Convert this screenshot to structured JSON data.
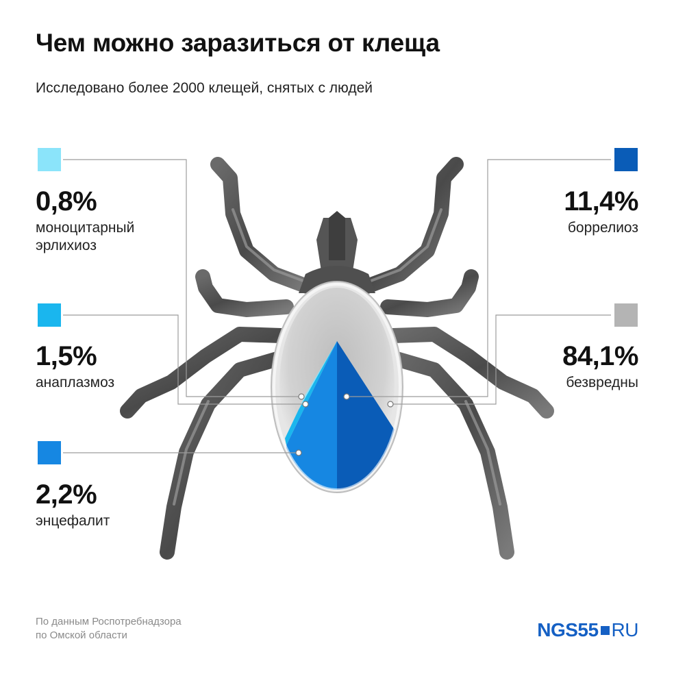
{
  "title": "Чем можно заразиться от клеща",
  "subtitle": "Исследовано более 2000 клещей, снятых с людей",
  "chart_data": {
    "type": "pie",
    "title": "Чем можно заразиться от клеща",
    "subtitle": "Исследовано более 2000 клещей, снятых с людей",
    "unit": "%",
    "slices": [
      {
        "pct_label": "0,8%",
        "value": 0.8,
        "name_lines": [
          "моноцитарный",
          "эрлихиоз"
        ],
        "color": "#8be4fa"
      },
      {
        "pct_label": "1,5%",
        "value": 1.5,
        "name_lines": [
          "анаплазмоз"
        ],
        "color": "#1ab6ee"
      },
      {
        "pct_label": "2,2%",
        "value": 2.2,
        "name_lines": [
          "энцефалит"
        ],
        "color": "#1687e2"
      },
      {
        "pct_label": "11,4%",
        "value": 11.4,
        "name_lines": [
          "боррелиоз"
        ],
        "color": "#0a5cb7"
      },
      {
        "pct_label": "84,1%",
        "value": 84.1,
        "name_lines": [
          "безвредны"
        ],
        "color": "#b4b4b4"
      }
    ]
  },
  "source_text": "По данным Роспотребнадзора\nпо Омской области",
  "logo": {
    "main": "NGS55",
    "suffix": "RU",
    "color": "#1560c4"
  },
  "icon_names": [
    "tick-illustration-icon",
    "logo-square-icon"
  ]
}
